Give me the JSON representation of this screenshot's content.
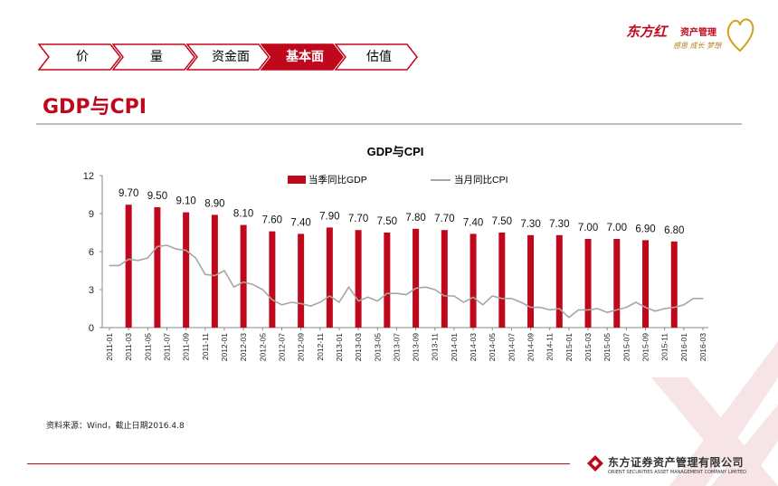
{
  "nav": {
    "items": [
      {
        "label": "价",
        "active": false
      },
      {
        "label": "量",
        "active": false
      },
      {
        "label": "资金面",
        "active": false
      },
      {
        "label": "基本面",
        "active": true
      },
      {
        "label": "估值",
        "active": false
      }
    ]
  },
  "brand": {
    "name": "东方红",
    "sub": "资产管理",
    "slogan": "感恩 成长 梦想"
  },
  "page_title": "GDP与CPI",
  "source_note": "资料来源：Wind，截止日期2016.4.8",
  "footer": {
    "company_cn": "东方证券资产管理有限公司",
    "company_en": "ORIENT SECURITIES ASSET MANAGEMENT COMPANY LIMITED"
  },
  "colors": {
    "accent": "#c0081d",
    "cpi_line": "#a6a6a6",
    "nav_active_fill": "#c0081d",
    "nav_border": "#c0081d"
  },
  "chart_data": {
    "type": "bar",
    "title": "GDP与CPI",
    "ylim": [
      0,
      12
    ],
    "yticks": [
      0,
      3,
      6,
      9,
      12
    ],
    "xlabel": "",
    "ylabel": "",
    "legend_position": "top",
    "grid": false,
    "x": [
      "2011-01",
      "2011-02",
      "2011-03",
      "2011-04",
      "2011-05",
      "2011-06",
      "2011-07",
      "2011-08",
      "2011-09",
      "2011-10",
      "2011-11",
      "2011-12",
      "2012-01",
      "2012-02",
      "2012-03",
      "2012-04",
      "2012-05",
      "2012-06",
      "2012-07",
      "2012-08",
      "2012-09",
      "2012-10",
      "2012-11",
      "2012-12",
      "2013-01",
      "2013-02",
      "2013-03",
      "2013-04",
      "2013-05",
      "2013-06",
      "2013-07",
      "2013-08",
      "2013-09",
      "2013-10",
      "2013-11",
      "2013-12",
      "2014-01",
      "2014-02",
      "2014-03",
      "2014-04",
      "2014-05",
      "2014-06",
      "2014-07",
      "2014-08",
      "2014-09",
      "2014-10",
      "2014-11",
      "2014-12",
      "2015-01",
      "2015-02",
      "2015-03",
      "2015-04",
      "2015-05",
      "2015-06",
      "2015-07",
      "2015-08",
      "2015-09",
      "2015-10",
      "2015-11",
      "2015-12",
      "2016-01",
      "2016-02",
      "2016-03"
    ],
    "xtick_labels": [
      "2011-01",
      "2011-03",
      "2011-05",
      "2011-07",
      "2011-09",
      "2011-11",
      "2012-01",
      "2012-03",
      "2012-05",
      "2012-07",
      "2012-09",
      "2012-11",
      "2013-01",
      "2013-03",
      "2013-05",
      "2013-07",
      "2013-09",
      "2013-11",
      "2014-01",
      "2014-03",
      "2014-05",
      "2014-07",
      "2014-09",
      "2014-11",
      "2015-01",
      "2015-03",
      "2015-05",
      "2015-07",
      "2015-09",
      "2015-11",
      "2016-01",
      "2016-03"
    ],
    "series": [
      {
        "name": "当季同比GDP",
        "kind": "bar",
        "x": [
          "2011-03",
          "2011-06",
          "2011-09",
          "2011-12",
          "2012-03",
          "2012-06",
          "2012-09",
          "2012-12",
          "2013-03",
          "2013-06",
          "2013-09",
          "2013-12",
          "2014-03",
          "2014-06",
          "2014-09",
          "2014-12",
          "2015-03",
          "2015-06",
          "2015-09",
          "2015-12"
        ],
        "values": [
          9.7,
          9.5,
          9.1,
          8.9,
          8.1,
          7.6,
          7.4,
          7.9,
          7.7,
          7.5,
          7.8,
          7.7,
          7.4,
          7.5,
          7.3,
          7.3,
          7.0,
          7.0,
          6.9,
          6.8
        ],
        "labels": [
          "9.70",
          "9.50",
          "9.10",
          "8.90",
          "8.10",
          "7.60",
          "7.40",
          "7.90",
          "7.70",
          "7.50",
          "7.80",
          "7.70",
          "7.40",
          "7.50",
          "7.30",
          "7.30",
          "7.00",
          "7.00",
          "6.90",
          "6.80"
        ]
      },
      {
        "name": "当月同比CPI",
        "kind": "line",
        "values": [
          4.9,
          4.9,
          5.4,
          5.3,
          5.5,
          6.4,
          6.5,
          6.2,
          6.1,
          5.5,
          4.2,
          4.1,
          4.5,
          3.2,
          3.6,
          3.4,
          3.0,
          2.2,
          1.8,
          2.0,
          1.9,
          1.7,
          2.0,
          2.5,
          2.0,
          3.2,
          2.1,
          2.4,
          2.1,
          2.7,
          2.7,
          2.6,
          3.1,
          3.2,
          3.0,
          2.5,
          2.5,
          2.0,
          2.4,
          1.8,
          2.5,
          2.3,
          2.3,
          2.0,
          1.6,
          1.6,
          1.4,
          1.5,
          0.8,
          1.4,
          1.4,
          1.5,
          1.2,
          1.4,
          1.6,
          2.0,
          1.6,
          1.3,
          1.5,
          1.6,
          1.8,
          2.3,
          2.3
        ]
      }
    ]
  }
}
